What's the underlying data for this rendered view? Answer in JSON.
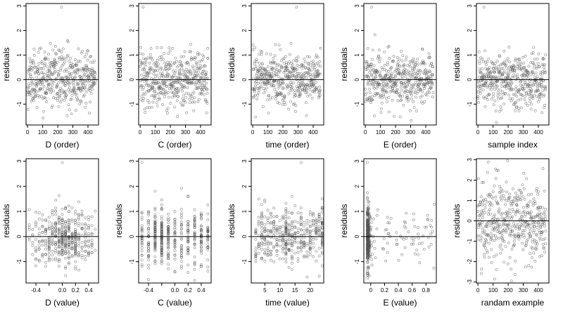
{
  "chart_data": [
    {
      "type": "scatter",
      "xlabel": "D (order)",
      "ylabel": "residuals",
      "xlim": [
        -10,
        470
      ],
      "ylim": [
        -1.85,
        3.1
      ],
      "xticks": [
        0,
        100,
        200,
        300,
        400
      ],
      "yticks": [
        -1,
        0,
        1,
        2,
        3
      ],
      "hline": 0,
      "seed": 11,
      "generator": {
        "kind": "index",
        "n": 450,
        "scale": 0.55
      },
      "highlights": [
        {
          "x": 225,
          "y": 2.95
        }
      ]
    },
    {
      "type": "scatter",
      "xlabel": "C (order)",
      "ylabel": "residuals",
      "xlim": [
        -10,
        470
      ],
      "ylim": [
        -1.85,
        3.1
      ],
      "xticks": [
        0,
        100,
        200,
        300,
        400
      ],
      "yticks": [
        -1,
        0,
        1,
        2,
        3
      ],
      "hline": 0,
      "seed": 12,
      "generator": {
        "kind": "index",
        "n": 450,
        "scale": 0.55
      },
      "highlights": [
        {
          "x": 20,
          "y": 2.95
        }
      ]
    },
    {
      "type": "scatter",
      "xlabel": "time (order)",
      "ylabel": "residuals",
      "xlim": [
        -10,
        470
      ],
      "ylim": [
        -1.85,
        3.1
      ],
      "xticks": [
        0,
        100,
        200,
        300,
        400
      ],
      "yticks": [
        -1,
        0,
        1,
        2,
        3
      ],
      "hline": 0,
      "seed": 13,
      "generator": {
        "kind": "index",
        "n": 450,
        "scale": 0.55
      },
      "highlights": [
        {
          "x": 290,
          "y": 2.95
        }
      ]
    },
    {
      "type": "scatter",
      "xlabel": "E (order)",
      "ylabel": "residuals",
      "xlim": [
        -10,
        470
      ],
      "ylim": [
        -1.85,
        3.1
      ],
      "xticks": [
        0,
        100,
        200,
        300,
        400
      ],
      "yticks": [
        -1,
        0,
        1,
        2,
        3
      ],
      "hline": 0,
      "seed": 14,
      "generator": {
        "kind": "index",
        "n": 450,
        "scale": 0.55
      },
      "highlights": [
        {
          "x": 40,
          "y": 2.95
        }
      ]
    },
    {
      "type": "scatter",
      "xlabel": "sample index",
      "ylabel": "residuals",
      "xlim": [
        -10,
        470
      ],
      "ylim": [
        -1.85,
        3.1
      ],
      "xticks": [
        0,
        100,
        200,
        300,
        400
      ],
      "yticks": [
        -1,
        0,
        1,
        2,
        3
      ],
      "hline": 0,
      "seed": 15,
      "generator": {
        "kind": "index",
        "n": 450,
        "scale": 0.55
      },
      "highlights": [
        {
          "x": 40,
          "y": 2.95
        }
      ]
    },
    {
      "type": "scatter",
      "xlabel": "D (value)",
      "ylabel": "residuals",
      "xlim": [
        -0.55,
        0.55
      ],
      "ylim": [
        -1.85,
        3.1
      ],
      "xticks": [
        -0.4,
        -0.2,
        0.0,
        0.2,
        0.4
      ],
      "xtick_labels": [
        "-0.4",
        "",
        "0.0",
        "0.2",
        "0.4"
      ],
      "yticks": [
        -1,
        0,
        1,
        2,
        3
      ],
      "hline": 0,
      "seed": 21,
      "generator": {
        "kind": "discrete",
        "n": 450,
        "scale": 0.55,
        "values": [
          -0.5,
          -0.45,
          -0.4,
          -0.35,
          -0.3,
          -0.25,
          -0.2,
          -0.15,
          -0.1,
          -0.05,
          0.0,
          0.05,
          0.1,
          0.15,
          0.2,
          0.25,
          0.3,
          0.35,
          0.4,
          0.45,
          0.5
        ],
        "weights": [
          1,
          2,
          3,
          3,
          4,
          5,
          6,
          7,
          8,
          9,
          10,
          9,
          10,
          8,
          7,
          6,
          5,
          4,
          3,
          2,
          1
        ]
      },
      "highlights": [
        {
          "x": 0.0,
          "y": 2.95
        }
      ]
    },
    {
      "type": "scatter",
      "xlabel": "C (value)",
      "ylabel": "residuals",
      "xlim": [
        -0.55,
        0.55
      ],
      "ylim": [
        -1.85,
        3.1
      ],
      "xticks": [
        -0.4,
        -0.2,
        0.0,
        0.2,
        0.4
      ],
      "xtick_labels": [
        "-0.4",
        "",
        "0.0",
        "0.2",
        "0.4"
      ],
      "yticks": [
        -1,
        0,
        1,
        2,
        3
      ],
      "hline": 0,
      "seed": 22,
      "generator": {
        "kind": "discrete",
        "n": 450,
        "scale": 0.55,
        "values": [
          -0.5,
          -0.4,
          -0.3,
          -0.2,
          -0.1,
          0.0,
          0.1,
          0.2,
          0.3,
          0.4,
          0.5
        ],
        "weights": [
          4,
          6,
          10,
          14,
          6,
          5,
          5,
          5,
          5,
          6,
          5
        ]
      },
      "highlights": [
        {
          "x": -0.5,
          "y": 2.95
        }
      ]
    },
    {
      "type": "scatter",
      "xlabel": "time (value)",
      "ylabel": "residuals",
      "xlim": [
        0.5,
        24.5
      ],
      "ylim": [
        -1.85,
        3.1
      ],
      "xticks": [
        5,
        10,
        15,
        20
      ],
      "yticks": [
        -1,
        0,
        1,
        2,
        3
      ],
      "hline": 0,
      "seed": 23,
      "generator": {
        "kind": "discrete",
        "n": 450,
        "scale": 0.55,
        "values": [
          2,
          3,
          4,
          5,
          6,
          7,
          8,
          9,
          10,
          11,
          12,
          13,
          14,
          15,
          16,
          17,
          18,
          19,
          20,
          21,
          22,
          23,
          24
        ],
        "weights": [
          3,
          3,
          4,
          4,
          4,
          4,
          4,
          4,
          4,
          6,
          12,
          6,
          4,
          4,
          4,
          4,
          4,
          4,
          4,
          4,
          4,
          4,
          8
        ]
      },
      "highlights": [
        {
          "x": 17,
          "y": 2.95
        }
      ]
    },
    {
      "type": "scatter",
      "xlabel": "E (value)",
      "ylabel": "residuals",
      "xlim": [
        -0.1,
        0.95
      ],
      "ylim": [
        -1.85,
        3.1
      ],
      "xticks": [
        0.0,
        0.2,
        0.4,
        0.6,
        0.8
      ],
      "yticks": [
        -1,
        0,
        1,
        2,
        3
      ],
      "hline": 0,
      "seed": 24,
      "generator": {
        "kind": "skew",
        "n": 450,
        "scale": 0.55,
        "min": -0.05,
        "rate": 0.012,
        "tail_frac": 0.15,
        "tail_max": 0.92
      },
      "highlights": [
        {
          "x": -0.05,
          "y": 2.95
        }
      ]
    },
    {
      "type": "scatter",
      "xlabel": "randam example",
      "ylabel": "residuals",
      "xlim": [
        -10,
        470
      ],
      "ylim": [
        -3.05,
        3.05
      ],
      "xticks": [
        0,
        100,
        200,
        300,
        400
      ],
      "yticks": [
        -3,
        -2,
        -1,
        0,
        1,
        2,
        3
      ],
      "hline": 0,
      "seed": 31,
      "generator": {
        "kind": "index",
        "n": 450,
        "scale": 1.0
      }
    }
  ]
}
